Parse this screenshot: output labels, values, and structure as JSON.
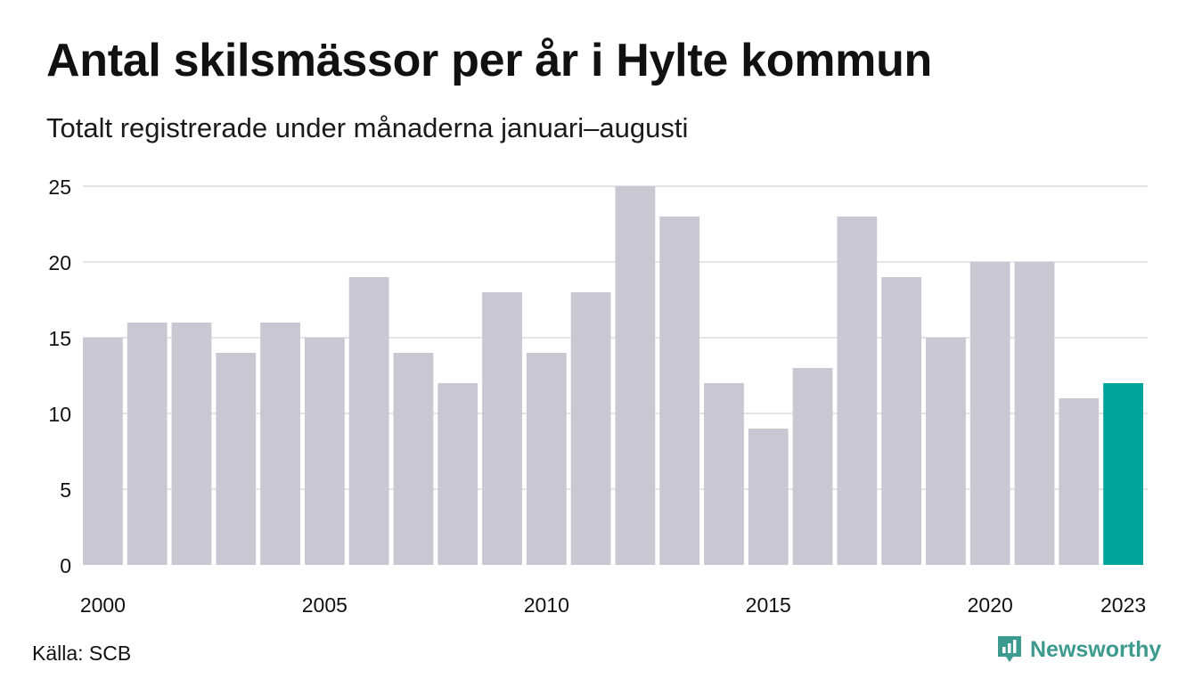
{
  "header": {
    "title": "Antal skilsmässor per år i Hylte kommun",
    "subtitle": "Totalt registrerade under månaderna januari–augusti"
  },
  "footer": {
    "source": "Källa: SCB",
    "brand": "Newsworthy",
    "brand_icon": "newsworthy-logo-icon"
  },
  "colors": {
    "bar": "#c8c7d2",
    "highlight": "#00a49a",
    "grid": "#e4e4e4",
    "text": "#111111",
    "brand": "#3c9a8f"
  },
  "chart_data": {
    "type": "bar",
    "title": "Antal skilsmässor per år i Hylte kommun",
    "subtitle": "Totalt registrerade under månaderna januari–augusti",
    "xlabel": "",
    "ylabel": "",
    "categories": [
      "2000",
      "2001",
      "2002",
      "2003",
      "2004",
      "2005",
      "2006",
      "2007",
      "2008",
      "2009",
      "2010",
      "2011",
      "2012",
      "2013",
      "2014",
      "2015",
      "2016",
      "2017",
      "2018",
      "2019",
      "2020",
      "2021",
      "2022",
      "2023"
    ],
    "values": [
      15,
      16,
      16,
      14,
      16,
      15,
      19,
      14,
      12,
      18,
      14,
      18,
      25,
      23,
      12,
      9,
      13,
      23,
      19,
      15,
      20,
      20,
      11,
      12
    ],
    "highlight": "2023",
    "ylim": [
      0,
      25
    ],
    "yticks": [
      0,
      5,
      10,
      15,
      20,
      25
    ],
    "xtick_labels": [
      "2000",
      "2005",
      "2010",
      "2015",
      "2020",
      "2023"
    ],
    "grid": true,
    "legend": "none"
  }
}
